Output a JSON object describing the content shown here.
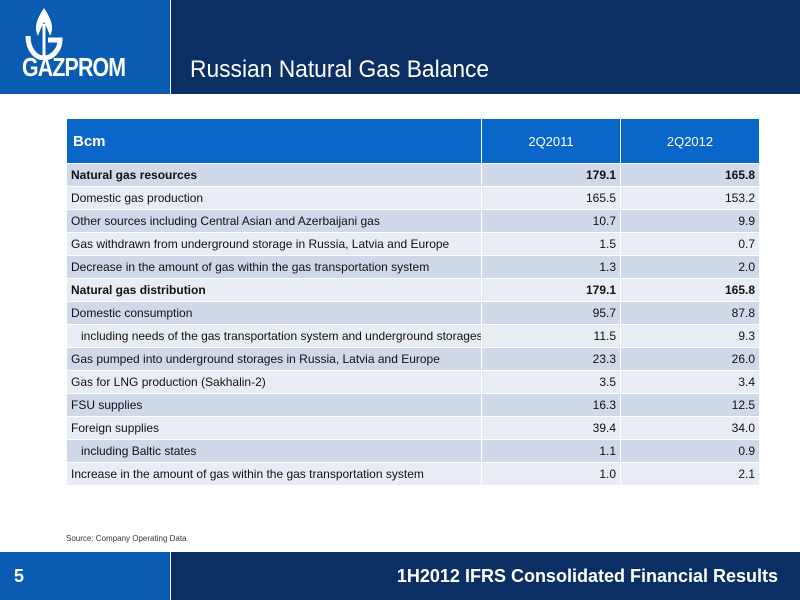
{
  "header": {
    "logo_text": "GAZPROM",
    "title": "Russian Natural Gas Balance"
  },
  "table": {
    "columns": [
      "Bcm",
      "2Q2011",
      "2Q2012"
    ],
    "rows": [
      {
        "label": "Natural gas resources",
        "v2011": "179.1",
        "v2012": "165.8",
        "bold": true,
        "indent": false
      },
      {
        "label": "Domestic gas production",
        "v2011": "165.5",
        "v2012": "153.2",
        "bold": false,
        "indent": false
      },
      {
        "label": "Other sources including Central Asian and Azerbaijani gas",
        "v2011": "10.7",
        "v2012": "9.9",
        "bold": false,
        "indent": false
      },
      {
        "label": "Gas withdrawn from underground storage in Russia, Latvia and Europe",
        "v2011": "1.5",
        "v2012": "0.7",
        "bold": false,
        "indent": false
      },
      {
        "label": "Decrease in the amount of gas within the gas transportation system",
        "v2011": "1.3",
        "v2012": "2.0",
        "bold": false,
        "indent": false
      },
      {
        "label": "Natural gas distribution",
        "v2011": "179.1",
        "v2012": "165.8",
        "bold": true,
        "indent": false
      },
      {
        "label": "Domestic consumption",
        "v2011": "95.7",
        "v2012": "87.8",
        "bold": false,
        "indent": false
      },
      {
        "label": "including needs of the gas transportation system and underground storages",
        "v2011": "11.5",
        "v2012": "9.3",
        "bold": false,
        "indent": true
      },
      {
        "label": "Gas pumped into underground storages in Russia, Latvia and Europe",
        "v2011": "23.3",
        "v2012": "26.0",
        "bold": false,
        "indent": false
      },
      {
        "label": "Gas for LNG production (Sakhalin-2)",
        "v2011": "3.5",
        "v2012": "3.4",
        "bold": false,
        "indent": false
      },
      {
        "label": "FSU supplies",
        "v2011": "16.3",
        "v2012": "12.5",
        "bold": false,
        "indent": false
      },
      {
        "label": "Foreign supplies",
        "v2011": "39.4",
        "v2012": "34.0",
        "bold": false,
        "indent": false
      },
      {
        "label": "including Baltic states",
        "v2011": "1.1",
        "v2012": "0.9",
        "bold": false,
        "indent": true
      },
      {
        "label": "Increase in the amount of gas within the gas transportation system",
        "v2011": "1.0",
        "v2012": "2.1",
        "bold": false,
        "indent": false
      }
    ]
  },
  "source": "Source: Company Operating Data",
  "footer": {
    "page_number": "5",
    "title": "1H2012 IFRS Consolidated Financial Results"
  },
  "colors": {
    "header_bg": "#0b2f63",
    "logo_bg": "#0a5bb2",
    "table_header_bg": "#0a66c8",
    "row_odd": "#cfd9ea",
    "row_even": "#e8edf5"
  }
}
